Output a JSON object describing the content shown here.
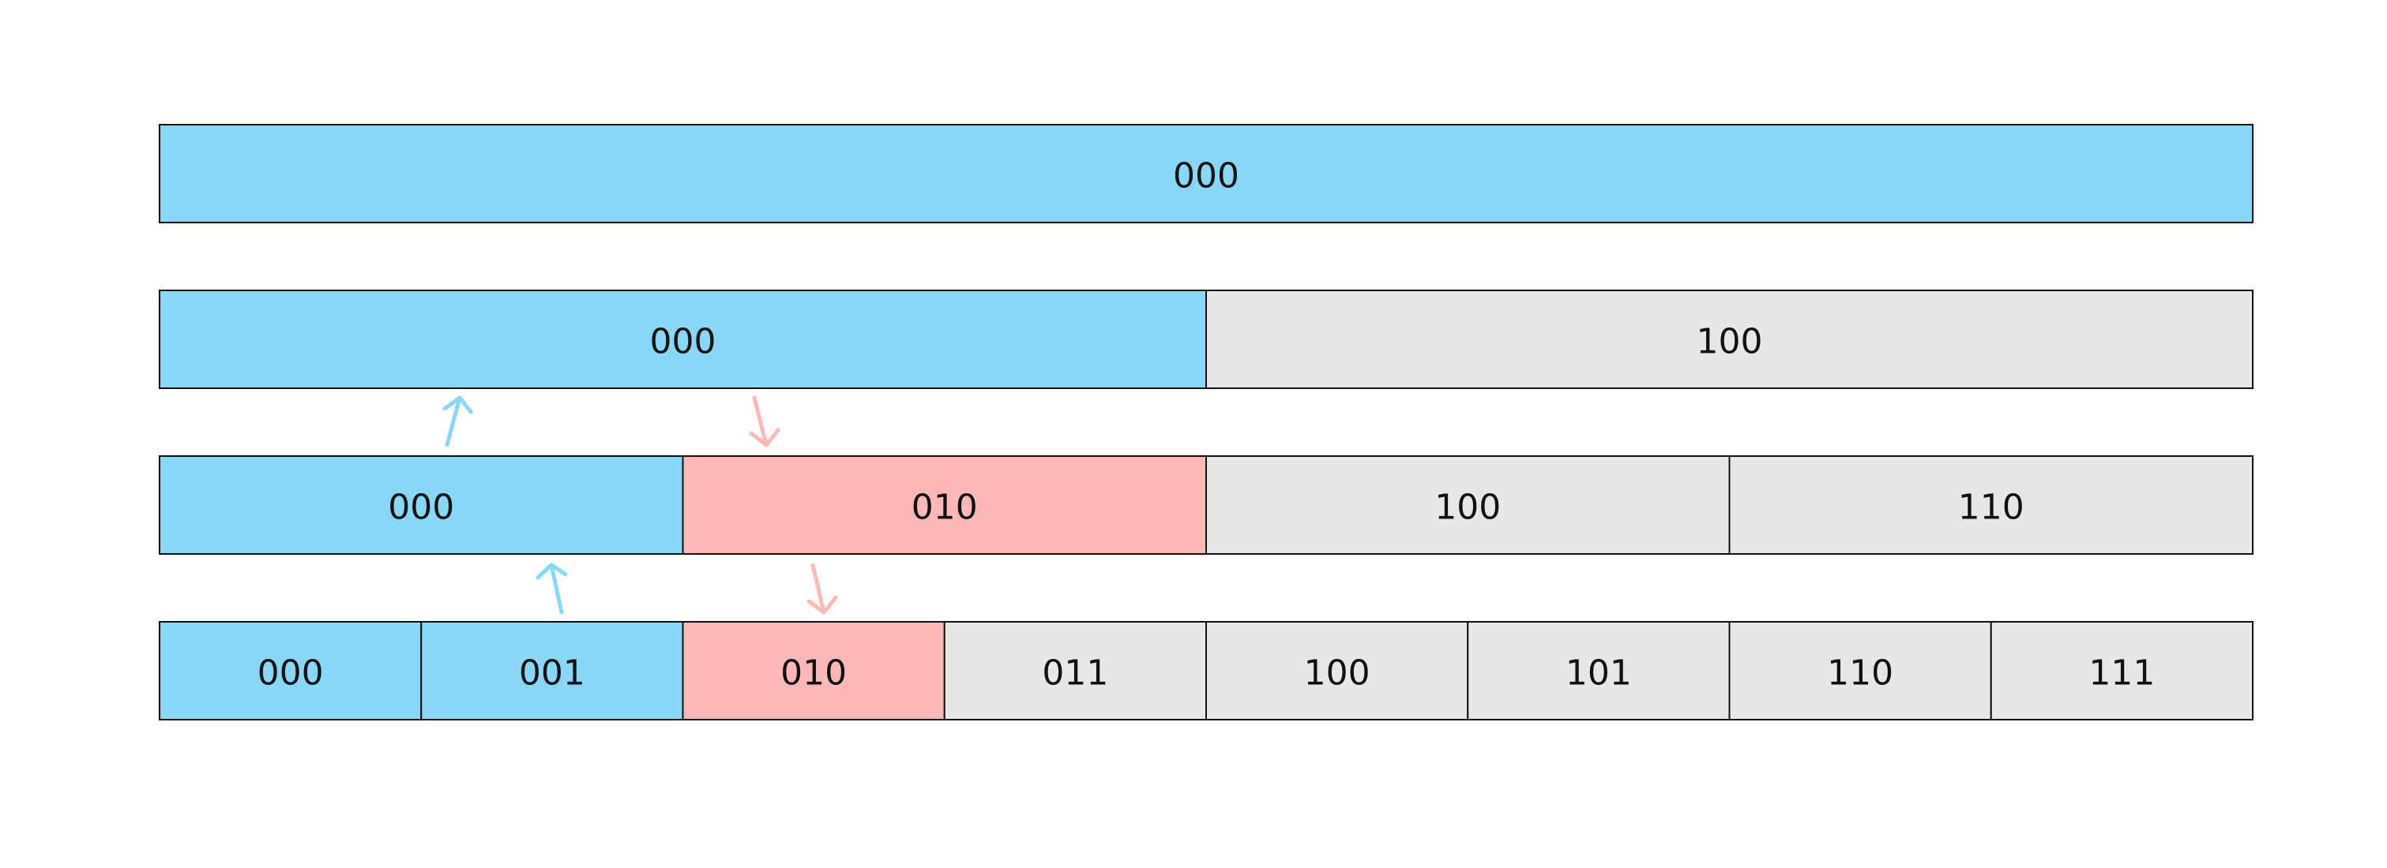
{
  "colors": {
    "blue": "#87d7f6",
    "red": "#ffb8b8",
    "gray": "#e7e7e7",
    "border": "#111111"
  },
  "rows": [
    {
      "cells": [
        {
          "label": "000",
          "color": "blue"
        }
      ]
    },
    {
      "cells": [
        {
          "label": "000",
          "color": "blue"
        },
        {
          "label": "100",
          "color": "gray"
        }
      ]
    },
    {
      "cells": [
        {
          "label": "000",
          "color": "blue"
        },
        {
          "label": "010",
          "color": "red"
        },
        {
          "label": "100",
          "color": "gray"
        },
        {
          "label": "110",
          "color": "gray"
        }
      ]
    },
    {
      "cells": [
        {
          "label": "000",
          "color": "blue"
        },
        {
          "label": "001",
          "color": "blue"
        },
        {
          "label": "010",
          "color": "red"
        },
        {
          "label": "011",
          "color": "gray"
        },
        {
          "label": "100",
          "color": "gray"
        },
        {
          "label": "101",
          "color": "gray"
        },
        {
          "label": "110",
          "color": "gray"
        },
        {
          "label": "111",
          "color": "gray"
        }
      ]
    }
  ],
  "arrows": [
    {
      "name": "arrow-up-blue-1",
      "color": "blue",
      "direction": "up"
    },
    {
      "name": "arrow-down-red-1",
      "color": "red",
      "direction": "down"
    },
    {
      "name": "arrow-up-blue-2",
      "color": "blue",
      "direction": "up"
    },
    {
      "name": "arrow-down-red-2",
      "color": "red",
      "direction": "down"
    }
  ]
}
